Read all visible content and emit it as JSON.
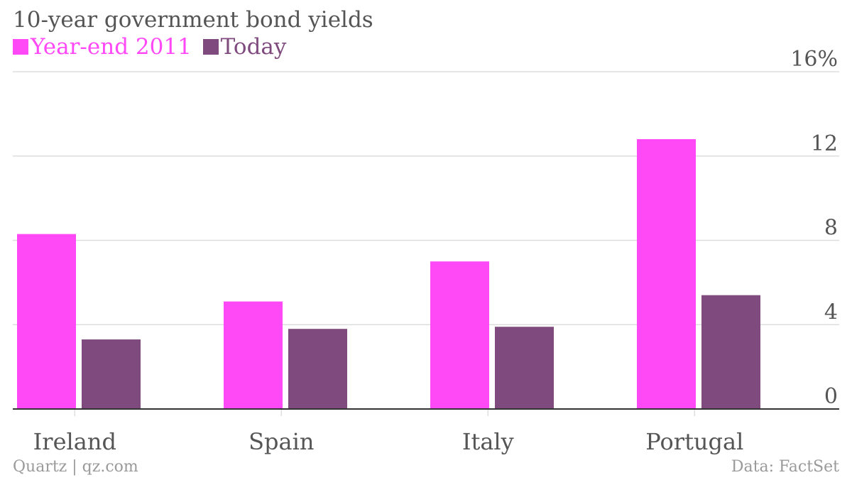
{
  "title": "10-year government bond yields",
  "colors": {
    "series_0": "#ff48f6",
    "series_1": "#7f4b7e",
    "grid": "#dddddd",
    "baseline": "#333333",
    "text": "#555555",
    "muted": "#9a9a9a"
  },
  "footer": {
    "source_left": "Quartz | qz.com",
    "source_right": "Data: FactSet"
  },
  "chart_data": {
    "type": "bar",
    "categories": [
      "Ireland",
      "Spain",
      "Italy",
      "Portugal"
    ],
    "series": [
      {
        "name": "Year-end 2011",
        "values": [
          8.3,
          5.1,
          7.0,
          12.8
        ]
      },
      {
        "name": "Today",
        "values": [
          3.3,
          3.8,
          3.9,
          5.4
        ]
      }
    ],
    "ylim": [
      0,
      16
    ],
    "yticks": [
      0,
      4,
      8,
      12,
      16
    ],
    "ytick_labels": [
      "0",
      "4",
      "8",
      "12",
      "16%"
    ],
    "legend": "top-left",
    "grid": true
  }
}
